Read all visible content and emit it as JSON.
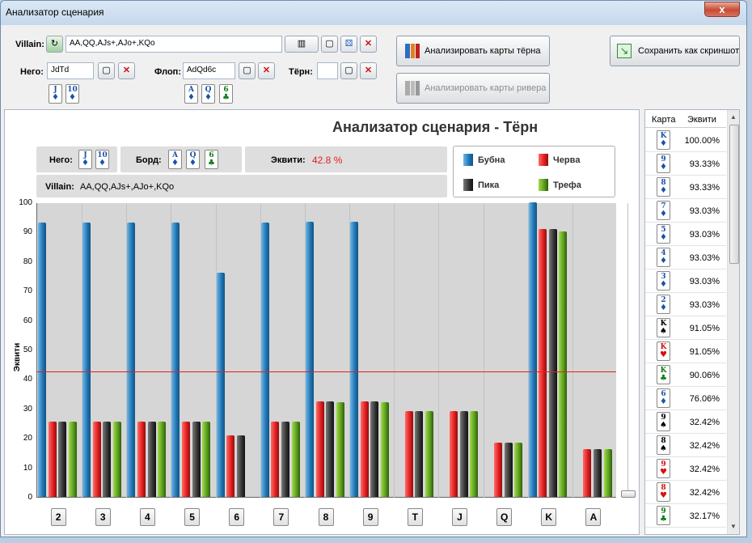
{
  "window": {
    "title": "Анализатор сценария",
    "close": "x"
  },
  "villain": {
    "label": "Villain:",
    "value": "AA,QQ,AJs+,AJo+,KQo"
  },
  "hero": {
    "label": "Него:",
    "value": "JdTd",
    "cards": [
      {
        "r": "J",
        "s": "♦",
        "c": "blue"
      },
      {
        "r": "10",
        "s": "♦",
        "c": "blue"
      }
    ]
  },
  "flop": {
    "label": "Флоп:",
    "value": "AdQd6c",
    "cards": [
      {
        "r": "A",
        "s": "♦",
        "c": "blue"
      },
      {
        "r": "Q",
        "s": "♦",
        "c": "blue"
      },
      {
        "r": "6",
        "s": "♣",
        "c": "green"
      }
    ]
  },
  "turn": {
    "label": "Тёрн:",
    "value": ""
  },
  "buttons": {
    "analyze_turn": "Анализировать карты тёрна",
    "analyze_river": "Анализировать карты ривера",
    "save_screenshot": "Сохранить как скриншот"
  },
  "chart_info": {
    "title": "Анализатор сценария - Тёрн",
    "hero_label": "Него:",
    "board_label": "Борд:",
    "equity_label": "Эквити:",
    "equity_value": "42.8 %",
    "villain_label": "Villain:",
    "villain_value": "AA,QQ,AJs+,AJo+,KQo"
  },
  "legend": [
    {
      "name": "Бубна",
      "color": "#1f74b4"
    },
    {
      "name": "Червa",
      "color": "#e01c1c"
    },
    {
      "name": "Пика",
      "color": "#333333"
    },
    {
      "name": "Трефа",
      "color": "#5a9c1c"
    }
  ],
  "chart_data": {
    "type": "bar",
    "ylabel": "Эквити",
    "ylim": [
      0,
      100
    ],
    "yticks": [
      "0",
      "10",
      "20",
      "30",
      "40",
      "50",
      "60",
      "70",
      "80",
      "90",
      "100"
    ],
    "categories": [
      "2",
      "3",
      "4",
      "5",
      "6",
      "7",
      "8",
      "9",
      "T",
      "J",
      "Q",
      "K",
      "A"
    ],
    "equity_line": 42.8,
    "series": [
      {
        "name": "Бубна",
        "values": [
          93.03,
          93.03,
          93.03,
          93.03,
          76.06,
          93.03,
          93.33,
          93.33,
          null,
          null,
          null,
          100.0,
          null
        ]
      },
      {
        "name": "Червa",
        "values": [
          25.6,
          25.6,
          25.6,
          25.6,
          20.9,
          25.6,
          32.42,
          32.42,
          29.1,
          29.1,
          18.4,
          91.05,
          16.3
        ]
      },
      {
        "name": "Пика",
        "values": [
          25.6,
          25.6,
          25.6,
          25.6,
          20.9,
          25.6,
          32.42,
          32.42,
          29.1,
          29.1,
          18.4,
          91.05,
          16.3
        ]
      },
      {
        "name": "Трефа",
        "values": [
          25.6,
          25.6,
          25.6,
          25.6,
          null,
          25.6,
          32.17,
          32.17,
          29.1,
          29.1,
          18.4,
          90.06,
          16.3
        ]
      }
    ]
  },
  "sidebar": {
    "col_card": "Карта",
    "col_equity": "Эквити",
    "rows": [
      {
        "r": "K",
        "s": "♦",
        "c": "blue",
        "v": "100.00%"
      },
      {
        "r": "9",
        "s": "♦",
        "c": "blue",
        "v": "93.33%"
      },
      {
        "r": "8",
        "s": "♦",
        "c": "blue",
        "v": "93.33%"
      },
      {
        "r": "7",
        "s": "♦",
        "c": "blue",
        "v": "93.03%"
      },
      {
        "r": "5",
        "s": "♦",
        "c": "blue",
        "v": "93.03%"
      },
      {
        "r": "4",
        "s": "♦",
        "c": "blue",
        "v": "93.03%"
      },
      {
        "r": "3",
        "s": "♦",
        "c": "blue",
        "v": "93.03%"
      },
      {
        "r": "2",
        "s": "♦",
        "c": "blue",
        "v": "93.03%"
      },
      {
        "r": "K",
        "s": "♠",
        "c": "black",
        "v": "91.05%"
      },
      {
        "r": "K",
        "s": "♥",
        "c": "red",
        "v": "91.05%"
      },
      {
        "r": "K",
        "s": "♣",
        "c": "green",
        "v": "90.06%"
      },
      {
        "r": "6",
        "s": "♦",
        "c": "blue",
        "v": "76.06%"
      },
      {
        "r": "9",
        "s": "♠",
        "c": "black",
        "v": "32.42%"
      },
      {
        "r": "8",
        "s": "♠",
        "c": "black",
        "v": "32.42%"
      },
      {
        "r": "9",
        "s": "♥",
        "c": "red",
        "v": "32.42%"
      },
      {
        "r": "8",
        "s": "♥",
        "c": "red",
        "v": "32.42%"
      },
      {
        "r": "9",
        "s": "♣",
        "c": "green",
        "v": "32.17%"
      }
    ]
  }
}
